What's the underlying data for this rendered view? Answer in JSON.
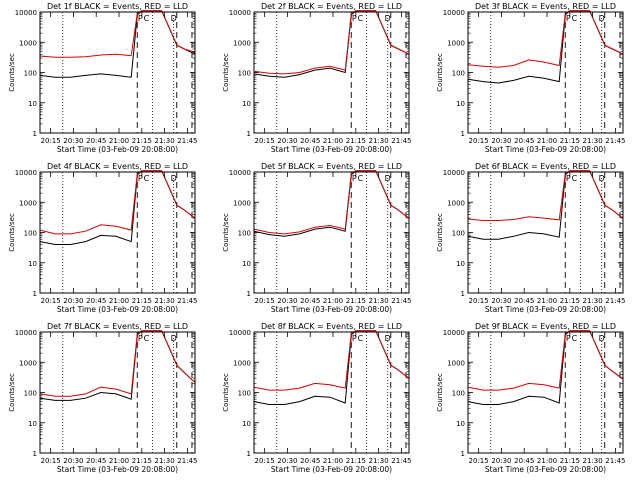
{
  "chart_data": [
    {
      "type": "line",
      "title": "Det 1f BLACK = Events, RED = LLD",
      "xlabel": "Start Time (03-Feb-09 20:08:00)",
      "ylabel": "Counts/sec",
      "yscale": "log",
      "ylim": [
        1,
        10000
      ],
      "xlim_minutes": [
        0,
        102
      ],
      "x_ticks": [
        "20:15",
        "20:30",
        "20:45",
        "21:00",
        "21:15",
        "21:30",
        "21:45"
      ],
      "y_ticks": [
        "1",
        "10",
        "100",
        "1000",
        "10000"
      ],
      "markers": [
        "P",
        "C",
        "D"
      ],
      "series": [
        {
          "color": "#000000",
          "x": [
            0,
            10,
            20,
            30,
            40,
            50,
            60,
            64,
            67,
            70,
            75,
            80,
            85,
            90,
            95,
            100,
            102
          ],
          "values": [
            80,
            70,
            70,
            80,
            90,
            80,
            70,
            8000,
            11000,
            11000,
            11000,
            11000,
            3000,
            800,
            600,
            450,
            420
          ]
        },
        {
          "color": "#dd0000",
          "x": [
            0,
            10,
            20,
            30,
            40,
            50,
            60,
            64,
            67,
            70,
            75,
            80,
            85,
            90,
            95,
            100,
            102
          ],
          "values": [
            350,
            320,
            320,
            330,
            380,
            400,
            360,
            9000,
            11000,
            11000,
            11000,
            11000,
            3000,
            800,
            600,
            500,
            450
          ]
        }
      ]
    },
    {
      "type": "line",
      "title": "Det 2f BLACK = Events, RED = LLD",
      "xlabel": "Start Time (03-Feb-09 20:08:00)",
      "ylabel": "Counts/sec",
      "yscale": "log",
      "ylim": [
        1,
        10000
      ],
      "xlim_minutes": [
        0,
        102
      ],
      "x_ticks": [
        "20:15",
        "20:30",
        "20:45",
        "21:00",
        "21:15",
        "21:30",
        "21:45"
      ],
      "y_ticks": [
        "1",
        "10",
        "100",
        "1000",
        "10000"
      ],
      "markers": [
        "P",
        "C",
        "D"
      ],
      "series": [
        {
          "color": "#000000",
          "x": [
            0,
            10,
            20,
            30,
            40,
            50,
            60,
            64,
            67,
            70,
            75,
            80,
            85,
            90,
            95,
            100,
            102
          ],
          "values": [
            90,
            75,
            70,
            85,
            120,
            140,
            100,
            8000,
            11000,
            11000,
            11000,
            11000,
            3000,
            800,
            600,
            450,
            400
          ]
        },
        {
          "color": "#dd0000",
          "x": [
            0,
            10,
            20,
            30,
            40,
            50,
            60,
            64,
            67,
            70,
            75,
            80,
            85,
            90,
            95,
            100,
            102
          ],
          "values": [
            110,
            95,
            90,
            100,
            140,
            160,
            120,
            9000,
            11000,
            11000,
            11000,
            11000,
            3000,
            800,
            600,
            450,
            400
          ]
        }
      ]
    },
    {
      "type": "line",
      "title": "Det 3f BLACK = Events, RED = LLD",
      "xlabel": "Start Time (03-Feb-09 20:08:00)",
      "ylabel": "Counts/sec",
      "yscale": "log",
      "ylim": [
        1,
        10000
      ],
      "xlim_minutes": [
        0,
        102
      ],
      "x_ticks": [
        "20:15",
        "20:30",
        "20:45",
        "21:00",
        "21:15",
        "21:30",
        "21:45"
      ],
      "y_ticks": [
        "1",
        "10",
        "100",
        "1000",
        "10000"
      ],
      "markers": [
        "P",
        "C",
        "D"
      ],
      "series": [
        {
          "color": "#000000",
          "x": [
            0,
            10,
            20,
            30,
            40,
            50,
            60,
            64,
            67,
            70,
            75,
            80,
            85,
            90,
            95,
            100,
            102
          ],
          "values": [
            60,
            50,
            45,
            55,
            75,
            65,
            50,
            8000,
            11000,
            11000,
            11000,
            11000,
            3000,
            800,
            600,
            450,
            400
          ]
        },
        {
          "color": "#dd0000",
          "x": [
            0,
            10,
            20,
            30,
            40,
            50,
            60,
            64,
            67,
            70,
            75,
            80,
            85,
            90,
            95,
            100,
            102
          ],
          "values": [
            180,
            160,
            150,
            170,
            260,
            220,
            170,
            9000,
            11000,
            11000,
            11000,
            11000,
            3000,
            800,
            600,
            450,
            400
          ]
        }
      ]
    },
    {
      "type": "line",
      "title": "Det 4f BLACK = Events, RED = LLD",
      "xlabel": "Start Time (03-Feb-09 20:08:00)",
      "ylabel": "Counts/sec",
      "yscale": "log",
      "ylim": [
        1,
        10000
      ],
      "xlim_minutes": [
        0,
        102
      ],
      "x_ticks": [
        "20:15",
        "20:30",
        "20:45",
        "21:00",
        "21:15",
        "21:30",
        "21:45"
      ],
      "y_ticks": [
        "1",
        "10",
        "100",
        "1000",
        "10000"
      ],
      "markers": [
        "P",
        "C",
        "D"
      ],
      "series": [
        {
          "color": "#000000",
          "x": [
            0,
            10,
            20,
            30,
            40,
            50,
            60,
            64,
            67,
            70,
            75,
            80,
            85,
            90,
            95,
            100,
            102
          ],
          "values": [
            50,
            40,
            40,
            50,
            80,
            75,
            50,
            8000,
            11000,
            11000,
            11000,
            11000,
            3000,
            800,
            550,
            350,
            300
          ]
        },
        {
          "color": "#dd0000",
          "x": [
            0,
            10,
            20,
            30,
            40,
            50,
            60,
            64,
            67,
            70,
            75,
            80,
            85,
            90,
            95,
            100,
            102
          ],
          "values": [
            120,
            90,
            90,
            110,
            180,
            160,
            120,
            9000,
            11000,
            11000,
            11000,
            11000,
            3000,
            800,
            550,
            350,
            300
          ]
        }
      ]
    },
    {
      "type": "line",
      "title": "Det 5f BLACK = Events, RED = LLD",
      "xlabel": "Start Time (03-Feb-09 20:08:00)",
      "ylabel": "Counts/sec",
      "yscale": "log",
      "ylim": [
        1,
        10000
      ],
      "xlim_minutes": [
        0,
        102
      ],
      "x_ticks": [
        "20:15",
        "20:30",
        "20:45",
        "21:00",
        "21:15",
        "21:30",
        "21:45"
      ],
      "y_ticks": [
        "1",
        "10",
        "100",
        "1000",
        "10000"
      ],
      "markers": [
        "P",
        "C",
        "D"
      ],
      "series": [
        {
          "color": "#000000",
          "x": [
            0,
            10,
            20,
            30,
            40,
            50,
            60,
            64,
            67,
            70,
            75,
            80,
            85,
            90,
            95,
            100,
            102
          ],
          "values": [
            110,
            85,
            75,
            90,
            130,
            150,
            110,
            8000,
            11000,
            11000,
            11000,
            11000,
            3000,
            800,
            550,
            350,
            300
          ]
        },
        {
          "color": "#dd0000",
          "x": [
            0,
            10,
            20,
            30,
            40,
            50,
            60,
            64,
            67,
            70,
            75,
            80,
            85,
            90,
            95,
            100,
            102
          ],
          "values": [
            130,
            100,
            90,
            105,
            150,
            170,
            130,
            9000,
            11000,
            11000,
            11000,
            11000,
            3000,
            800,
            550,
            350,
            300
          ]
        }
      ]
    },
    {
      "type": "line",
      "title": "Det 6f BLACK = Events, RED = LLD",
      "xlabel": "Start Time (03-Feb-09 20:08:00)",
      "ylabel": "Counts/sec",
      "yscale": "log",
      "ylim": [
        1,
        10000
      ],
      "xlim_minutes": [
        0,
        102
      ],
      "x_ticks": [
        "20:15",
        "20:30",
        "20:45",
        "21:00",
        "21:15",
        "21:30",
        "21:45"
      ],
      "y_ticks": [
        "1",
        "10",
        "100",
        "1000",
        "10000"
      ],
      "markers": [
        "P",
        "C",
        "D"
      ],
      "series": [
        {
          "color": "#000000",
          "x": [
            0,
            10,
            20,
            30,
            40,
            50,
            60,
            64,
            67,
            70,
            75,
            80,
            85,
            90,
            95,
            100,
            102
          ],
          "values": [
            75,
            60,
            60,
            75,
            100,
            90,
            70,
            8000,
            11000,
            11000,
            11000,
            11000,
            3000,
            800,
            550,
            350,
            300
          ]
        },
        {
          "color": "#dd0000",
          "x": [
            0,
            10,
            20,
            30,
            40,
            50,
            60,
            64,
            67,
            70,
            75,
            80,
            85,
            90,
            95,
            100,
            102
          ],
          "values": [
            280,
            250,
            250,
            270,
            330,
            300,
            260,
            9000,
            11000,
            11000,
            11000,
            11000,
            3000,
            800,
            550,
            350,
            300
          ]
        }
      ]
    },
    {
      "type": "line",
      "title": "Det 7f BLACK = Events, RED = LLD",
      "xlabel": "Start Time (03-Feb-09 20:08:00)",
      "ylabel": "Counts/sec",
      "yscale": "log",
      "ylim": [
        1,
        10000
      ],
      "xlim_minutes": [
        0,
        102
      ],
      "x_ticks": [
        "20:15",
        "20:30",
        "20:45",
        "21:00",
        "21:15",
        "21:30",
        "21:45"
      ],
      "y_ticks": [
        "1",
        "10",
        "100",
        "1000",
        "10000"
      ],
      "markers": [
        "P",
        "C",
        "D"
      ],
      "series": [
        {
          "color": "#000000",
          "x": [
            0,
            10,
            20,
            30,
            40,
            50,
            60,
            64,
            67,
            70,
            75,
            80,
            85,
            90,
            95,
            100,
            102
          ],
          "values": [
            65,
            55,
            55,
            65,
            100,
            90,
            60,
            8000,
            11000,
            11000,
            11000,
            11000,
            3000,
            800,
            450,
            260,
            220
          ]
        },
        {
          "color": "#dd0000",
          "x": [
            0,
            10,
            20,
            30,
            40,
            50,
            60,
            64,
            67,
            70,
            75,
            80,
            85,
            90,
            95,
            100,
            102
          ],
          "values": [
            90,
            75,
            75,
            90,
            150,
            130,
            90,
            9000,
            11000,
            11000,
            11000,
            11000,
            3000,
            800,
            450,
            260,
            220
          ]
        }
      ]
    },
    {
      "type": "line",
      "title": "Det 8f BLACK = Events, RED = LLD",
      "xlabel": "Start Time (03-Feb-09 20:08:00)",
      "ylabel": "Counts/sec",
      "yscale": "log",
      "ylim": [
        1,
        10000
      ],
      "xlim_minutes": [
        0,
        102
      ],
      "x_ticks": [
        "20:15",
        "20:30",
        "20:45",
        "21:00",
        "21:15",
        "21:30",
        "21:45"
      ],
      "y_ticks": [
        "1",
        "10",
        "100",
        "1000",
        "10000"
      ],
      "markers": [
        "P",
        "C",
        "D"
      ],
      "series": [
        {
          "color": "#000000",
          "x": [
            0,
            10,
            20,
            30,
            40,
            50,
            60,
            64,
            67,
            70,
            75,
            80,
            85,
            90,
            95,
            100,
            102
          ],
          "values": [
            50,
            40,
            40,
            50,
            75,
            70,
            45,
            8000,
            11000,
            11000,
            11000,
            11000,
            3000,
            800,
            550,
            350,
            300
          ]
        },
        {
          "color": "#dd0000",
          "x": [
            0,
            10,
            20,
            30,
            40,
            50,
            60,
            64,
            67,
            70,
            75,
            80,
            85,
            90,
            95,
            100,
            102
          ],
          "values": [
            150,
            120,
            120,
            140,
            200,
            180,
            140,
            9000,
            11000,
            11000,
            11000,
            11000,
            3000,
            800,
            550,
            350,
            300
          ]
        }
      ]
    },
    {
      "type": "line",
      "title": "Det 9f BLACK = Events, RED = LLD",
      "xlabel": "Start Time (03-Feb-09 20:08:00)",
      "ylabel": "Counts/sec",
      "yscale": "log",
      "ylim": [
        1,
        10000
      ],
      "xlim_minutes": [
        0,
        102
      ],
      "x_ticks": [
        "20:15",
        "20:30",
        "20:45",
        "21:00",
        "21:15",
        "21:30",
        "21:45"
      ],
      "y_ticks": [
        "1",
        "10",
        "100",
        "1000",
        "10000"
      ],
      "markers": [
        "P",
        "C",
        "D"
      ],
      "series": [
        {
          "color": "#000000",
          "x": [
            0,
            10,
            20,
            30,
            40,
            50,
            60,
            64,
            67,
            70,
            75,
            80,
            85,
            90,
            95,
            100,
            102
          ],
          "values": [
            50,
            40,
            40,
            50,
            75,
            70,
            45,
            8000,
            11000,
            11000,
            11000,
            11000,
            3000,
            800,
            500,
            330,
            280
          ]
        },
        {
          "color": "#dd0000",
          "x": [
            0,
            10,
            20,
            30,
            40,
            50,
            60,
            64,
            67,
            70,
            75,
            80,
            85,
            90,
            95,
            100,
            102
          ],
          "values": [
            150,
            120,
            120,
            140,
            200,
            180,
            140,
            9000,
            11000,
            11000,
            11000,
            11000,
            3000,
            800,
            500,
            330,
            280
          ]
        }
      ]
    }
  ]
}
